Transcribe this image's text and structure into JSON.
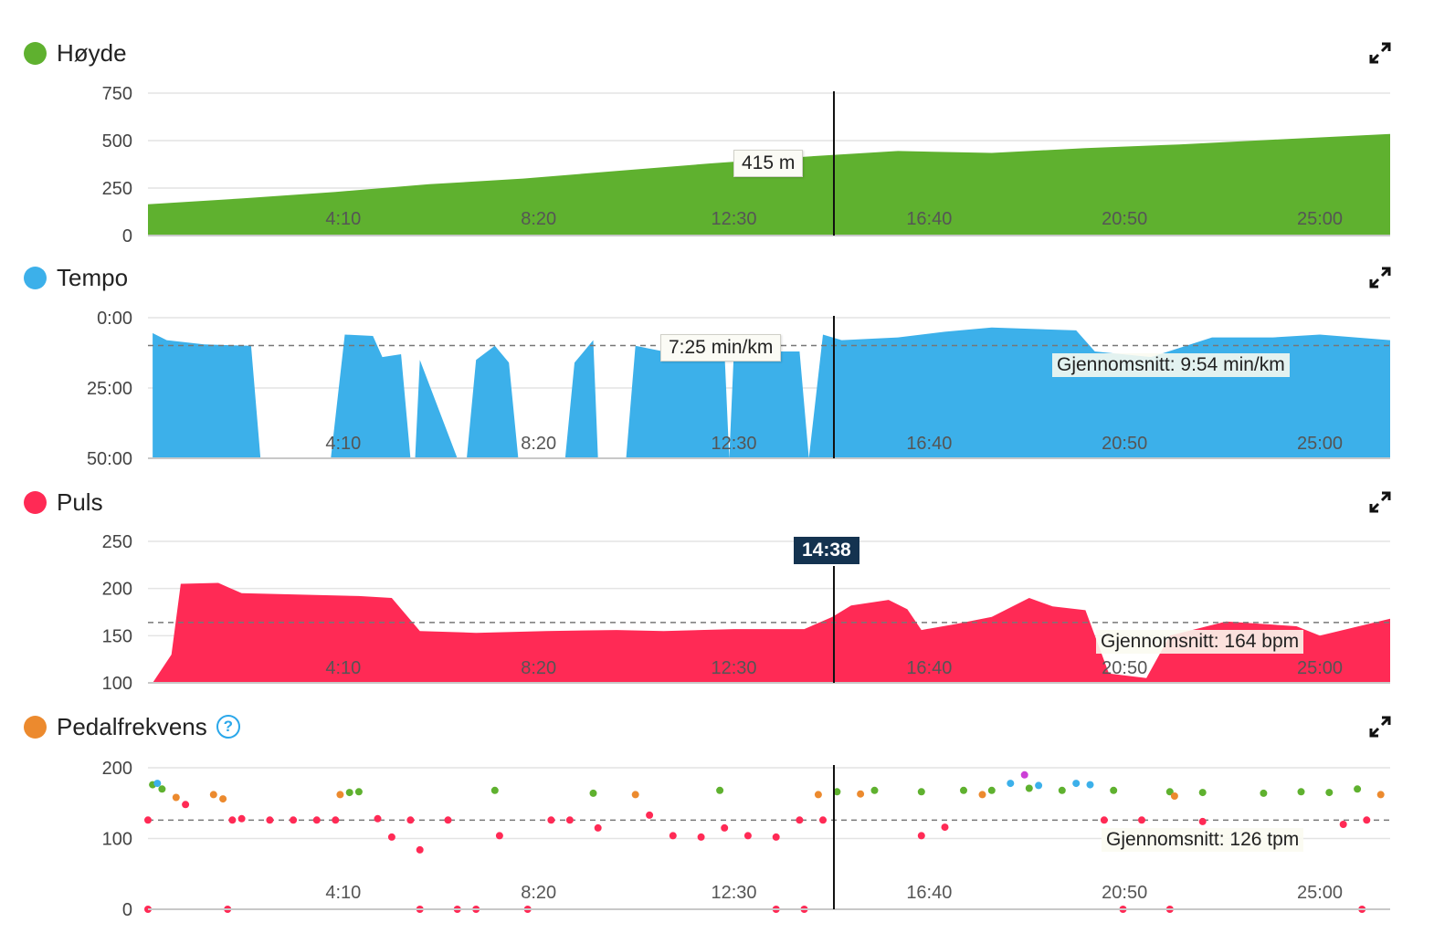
{
  "x_ticks": [
    "4:10",
    "8:20",
    "12:30",
    "16:40",
    "20:50",
    "25:00"
  ],
  "crosshair_time": "14:38",
  "colors": {
    "hoyde": "#5fb12f",
    "tempo": "#3cb0ea",
    "puls": "#ff2a55",
    "pedal": "#ec8a2e",
    "grid": "#e4e4e4",
    "crosshair": "#111111"
  },
  "panels": {
    "hoyde": {
      "title": "Høyde",
      "tooltip": "415 m",
      "yticks": [
        "750",
        "500",
        "250",
        "0"
      ]
    },
    "tempo": {
      "title": "Tempo",
      "tooltip": "7:25 min/km",
      "average": "Gjennomsnitt: 9:54 min/km",
      "yticks": [
        "0:00",
        "25:00",
        "50:00"
      ]
    },
    "puls": {
      "title": "Puls",
      "average": "Gjennomsnitt: 164 bpm",
      "yticks": [
        "250",
        "200",
        "150",
        "100"
      ]
    },
    "pedal": {
      "title": "Pedalfrekvens",
      "help_icon": "question-circle-icon",
      "average": "Gjennomsnitt: 126 tpm",
      "yticks": [
        "200",
        "100",
        "0"
      ]
    }
  },
  "chart_data": [
    {
      "type": "area",
      "title": "Høyde",
      "x_unit": "minutes",
      "ylim": [
        0,
        750
      ],
      "x": [
        0,
        2,
        4,
        6,
        8,
        10,
        12,
        14,
        16,
        18,
        20,
        22,
        24,
        26.5
      ],
      "values": [
        165,
        195,
        230,
        270,
        300,
        340,
        380,
        415,
        445,
        435,
        460,
        480,
        505,
        535
      ]
    },
    {
      "type": "area",
      "title": "Tempo",
      "x_unit": "minutes",
      "y_inverted": true,
      "ylim": [
        "0:00",
        "50:00"
      ],
      "average": "9:54",
      "series": [
        {
          "values_min_per_km": [
            [
              0.1,
              5.5
            ],
            [
              0.4,
              8
            ],
            [
              1.2,
              9.5
            ],
            [
              2.2,
              10
            ],
            [
              2.4,
              50
            ],
            [
              3.9,
              50
            ],
            [
              4.2,
              6
            ],
            [
              4.8,
              6.5
            ],
            [
              5,
              14
            ],
            [
              5.4,
              13
            ],
            [
              5.6,
              50
            ],
            [
              5.7,
              50
            ],
            [
              5.8,
              15
            ],
            [
              6.6,
              50
            ],
            [
              6.8,
              50
            ],
            [
              7.0,
              15
            ],
            [
              7.4,
              10
            ],
            [
              7.7,
              16
            ],
            [
              7.9,
              50
            ],
            [
              8.9,
              50
            ],
            [
              9.1,
              16
            ],
            [
              9.5,
              8
            ],
            [
              9.6,
              50
            ],
            [
              10.2,
              50
            ],
            [
              10.4,
              10
            ],
            [
              11.0,
              12
            ],
            [
              12.3,
              12
            ],
            [
              12.4,
              50
            ],
            [
              12.5,
              12
            ],
            [
              13.9,
              12
            ],
            [
              14.1,
              50
            ],
            [
              14.4,
              6
            ],
            [
              14.8,
              8
            ],
            [
              16.0,
              7
            ],
            [
              17.0,
              5
            ],
            [
              18.0,
              3.5
            ],
            [
              19.8,
              4.5
            ],
            [
              20.2,
              12
            ],
            [
              21.4,
              14
            ],
            [
              22.7,
              7
            ],
            [
              24.0,
              7
            ],
            [
              25.0,
              6
            ],
            [
              26.5,
              8
            ]
          ]
        }
      ]
    },
    {
      "type": "area",
      "title": "Puls",
      "x_unit": "minutes",
      "ylim": [
        100,
        250
      ],
      "average": 164,
      "values_bpm": [
        [
          0.1,
          100
        ],
        [
          0.5,
          130
        ],
        [
          0.7,
          205
        ],
        [
          1.5,
          206
        ],
        [
          2.0,
          195
        ],
        [
          4.5,
          192
        ],
        [
          5.2,
          190
        ],
        [
          5.8,
          155
        ],
        [
          7.0,
          153
        ],
        [
          8.5,
          155
        ],
        [
          10.0,
          156
        ],
        [
          11.0,
          155
        ],
        [
          12.5,
          157
        ],
        [
          14.0,
          157
        ],
        [
          14.6,
          170
        ],
        [
          15.0,
          182
        ],
        [
          15.8,
          188
        ],
        [
          16.2,
          178
        ],
        [
          16.5,
          156
        ],
        [
          17.2,
          162
        ],
        [
          18.0,
          170
        ],
        [
          18.8,
          190
        ],
        [
          19.3,
          181
        ],
        [
          20.0,
          177
        ],
        [
          20.5,
          110
        ],
        [
          21.3,
          105
        ],
        [
          21.8,
          150
        ],
        [
          23.0,
          165
        ],
        [
          24.5,
          160
        ],
        [
          25.0,
          150
        ],
        [
          26.5,
          168
        ]
      ]
    },
    {
      "type": "scatter",
      "title": "Pedalfrekvens",
      "x_unit": "minutes",
      "ylim": [
        0,
        200
      ],
      "average": 126,
      "series": [
        {
          "color": "#5fb12f",
          "points": [
            [
              0.1,
              176
            ],
            [
              0.3,
              170
            ],
            [
              4.3,
              165
            ],
            [
              4.5,
              166
            ],
            [
              7.4,
              168
            ],
            [
              9.5,
              164
            ],
            [
              12.2,
              168
            ],
            [
              14.7,
              166
            ],
            [
              15.5,
              168
            ],
            [
              16.5,
              166
            ],
            [
              17.4,
              168
            ],
            [
              18.0,
              168
            ],
            [
              18.8,
              171
            ],
            [
              19.5,
              168
            ],
            [
              20.6,
              168
            ],
            [
              21.8,
              166
            ],
            [
              22.5,
              165
            ],
            [
              23.8,
              164
            ],
            [
              24.6,
              166
            ],
            [
              25.2,
              165
            ],
            [
              25.8,
              170
            ]
          ]
        },
        {
          "color": "#ec8a2e",
          "points": [
            [
              0.6,
              158
            ],
            [
              1.4,
              162
            ],
            [
              1.6,
              156
            ],
            [
              4.1,
              162
            ],
            [
              10.4,
              162
            ],
            [
              14.3,
              162
            ],
            [
              15.2,
              163
            ],
            [
              17.8,
              162
            ],
            [
              21.9,
              160
            ],
            [
              26.3,
              162
            ]
          ]
        },
        {
          "color": "#3cb0ea",
          "points": [
            [
              0.2,
              178
            ],
            [
              18.4,
              178
            ],
            [
              19.0,
              175
            ],
            [
              19.8,
              178
            ],
            [
              20.1,
              176
            ]
          ]
        },
        {
          "color": "#cc3fd6",
          "points": [
            [
              18.7,
              190
            ]
          ]
        },
        {
          "color": "#ff2a55",
          "points": [
            [
              0.0,
              126
            ],
            [
              0.8,
              148
            ],
            [
              1.8,
              126
            ],
            [
              2.0,
              128
            ],
            [
              2.6,
              126
            ],
            [
              3.1,
              126
            ],
            [
              3.6,
              126
            ],
            [
              4.0,
              126
            ],
            [
              4.9,
              128
            ],
            [
              5.2,
              102
            ],
            [
              5.6,
              126
            ],
            [
              5.8,
              84
            ],
            [
              6.4,
              126
            ],
            [
              7.5,
              104
            ],
            [
              8.6,
              126
            ],
            [
              9.0,
              126
            ],
            [
              9.6,
              115
            ],
            [
              10.7,
              133
            ],
            [
              11.2,
              104
            ],
            [
              11.8,
              102
            ],
            [
              12.3,
              115
            ],
            [
              12.8,
              104
            ],
            [
              13.4,
              102
            ],
            [
              13.9,
              126
            ],
            [
              14.4,
              126
            ],
            [
              16.5,
              104
            ],
            [
              17.0,
              116
            ],
            [
              20.4,
              126
            ],
            [
              21.2,
              126
            ],
            [
              22.5,
              124
            ],
            [
              25.5,
              120
            ],
            [
              26.0,
              126
            ],
            [
              0.0,
              0
            ],
            [
              1.7,
              0
            ],
            [
              5.8,
              0
            ],
            [
              6.6,
              0
            ],
            [
              7.0,
              0
            ],
            [
              8.1,
              0
            ],
            [
              13.4,
              0
            ],
            [
              14.0,
              0
            ],
            [
              20.8,
              0
            ],
            [
              21.8,
              0
            ],
            [
              25.9,
              0
            ]
          ]
        }
      ]
    }
  ]
}
